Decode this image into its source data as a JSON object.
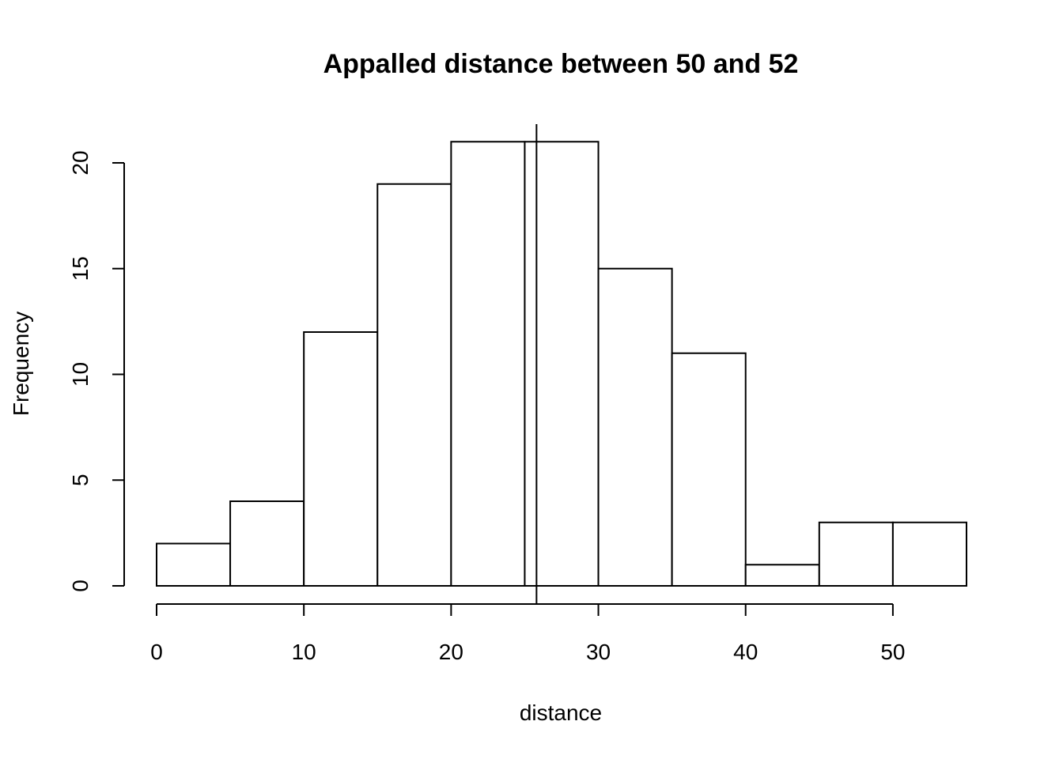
{
  "chart_data": {
    "type": "bar",
    "title": "Appalled distance between 50 and 52",
    "xlabel": "distance",
    "ylabel": "Frequency",
    "bin_edges": [
      0,
      5,
      10,
      15,
      20,
      25,
      30,
      35,
      40,
      45,
      50,
      55
    ],
    "values": [
      2,
      4,
      12,
      19,
      21,
      21,
      15,
      11,
      1,
      3,
      3
    ],
    "xlim": [
      0,
      55
    ],
    "ylim": [
      0,
      21
    ],
    "x_ticks": [
      0,
      10,
      20,
      30,
      40,
      50
    ],
    "x_tick_labels": [
      "0",
      "10",
      "20",
      "30",
      "40",
      "50"
    ],
    "y_ticks": [
      0,
      5,
      10,
      15,
      20
    ],
    "y_tick_labels": [
      "0",
      "5",
      "10",
      "15",
      "20"
    ],
    "reference_line_x": 25.8,
    "grid": false,
    "legend": "none"
  }
}
